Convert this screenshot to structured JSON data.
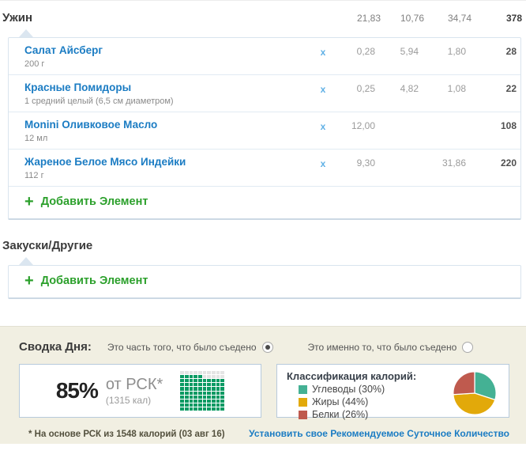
{
  "meals": {
    "dinner": {
      "title": "Ужин",
      "totals": {
        "fat": "21,83",
        "carbs": "10,76",
        "protein": "34,74",
        "calories": "378"
      },
      "delete_label": "x",
      "plus": "+",
      "add_item_label": "Добавить Элемент",
      "items": [
        {
          "name": "Салат Айсберг",
          "serving": "200 г",
          "fat": "0,28",
          "carbs": "5,94",
          "protein": "1,80",
          "calories": "28"
        },
        {
          "name": "Красные Помидоры",
          "serving": "1 средний целый (6,5 см диаметром)",
          "fat": "0,25",
          "carbs": "4,82",
          "protein": "1,08",
          "calories": "22"
        },
        {
          "name": "Monini Оливковое Масло",
          "serving": "12 мл",
          "fat": "12,00",
          "carbs": "",
          "protein": "",
          "calories": "108"
        },
        {
          "name": "Жареное Белое Мясо Индейки",
          "serving": "112 г",
          "fat": "9,30",
          "carbs": "",
          "protein": "31,86",
          "calories": "220"
        }
      ]
    },
    "snacks": {
      "title": "Закуски/Другие",
      "plus": "+",
      "add_item_label": "Добавить Элемент"
    }
  },
  "summary": {
    "title": "Сводка Дня:",
    "radio_options": [
      {
        "label": "Это часть того, что было съедено",
        "selected": true
      },
      {
        "label": "Это именно то, что было съедено",
        "selected": false
      }
    ],
    "rdi": {
      "percent": "85%",
      "percent_value": 85,
      "label": "от РСК*",
      "calories": "(1315 кал)",
      "grid_on_color": "#0a9a63",
      "grid_off_color": "#e4e4e4"
    },
    "classification": {
      "title": "Классификация калорий:",
      "items": [
        {
          "label": "Углеводы (30%)",
          "value": 30,
          "color": "#44b194"
        },
        {
          "label": "Жиры (44%)",
          "value": 44,
          "color": "#e2a90a"
        },
        {
          "label": "Белки (26%)",
          "value": 26,
          "color": "#bf5a4e"
        }
      ]
    },
    "footer_note": "* На основе РСК из 1548 калорий (03 авг 16)",
    "footer_link": "Установить свое Рекомендуемое Суточное Количество"
  },
  "chart_data": [
    {
      "type": "pie",
      "title": "Классификация калорий",
      "categories": [
        "Углеводы",
        "Жиры",
        "Белки"
      ],
      "values": [
        30,
        44,
        26
      ],
      "colors": [
        "#44b194",
        "#e2a90a",
        "#bf5a4e"
      ],
      "legend_position": "left"
    },
    {
      "type": "heatmap",
      "title": "Процент от РСК (точечная сетка 10x10)",
      "values": [
        85
      ],
      "max": 100
    }
  ]
}
